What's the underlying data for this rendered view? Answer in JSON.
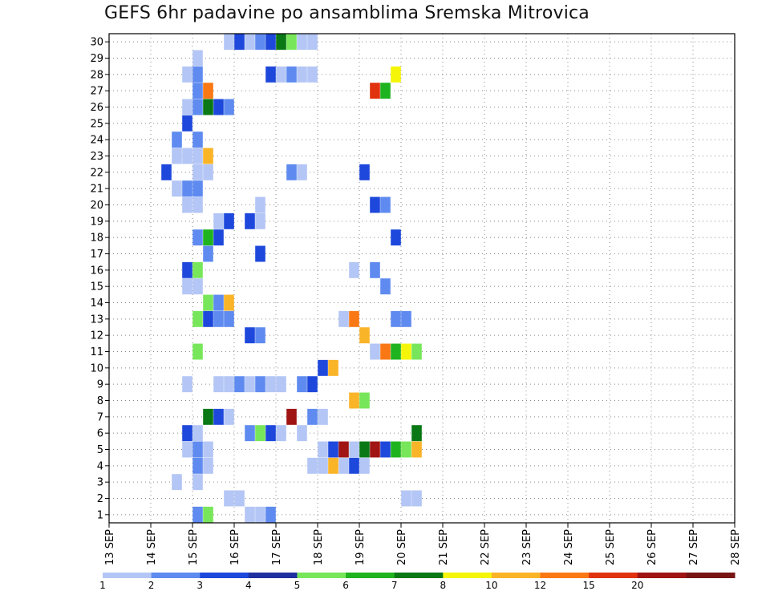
{
  "chart_data": {
    "type": "heatmap",
    "title": "GEFS 6hr padavine po ansamblima Sremska Mitrovica",
    "xlabel": "",
    "ylabel": "",
    "x_ticks": [
      "13 SEP",
      "14 SEP",
      "15 SEP",
      "16 SEP",
      "17 SEP",
      "18 SEP",
      "19 SEP",
      "20 SEP",
      "21 SEP",
      "22 SEP",
      "23 SEP",
      "24 SEP",
      "25 SEP",
      "26 SEP",
      "27 SEP",
      "28 SEP"
    ],
    "y_ticks": [
      "1",
      "2",
      "3",
      "4",
      "5",
      "6",
      "7",
      "8",
      "9",
      "10",
      "11",
      "12",
      "13",
      "14",
      "15",
      "16",
      "17",
      "18",
      "19",
      "20",
      "21",
      "22",
      "23",
      "24",
      "25",
      "26",
      "27",
      "28",
      "29",
      "30"
    ],
    "xlim": [
      0,
      60
    ],
    "ylim": [
      0.5,
      30.5
    ],
    "x_step_label": "6hr steps from 13 SEP 00Z",
    "grid": true,
    "colorbar": {
      "labels": [
        "1",
        "2",
        "3",
        "4",
        "5",
        "6",
        "7",
        "8",
        "10",
        "12",
        "15",
        "20"
      ],
      "colors": [
        "#b4c6f5",
        "#5f8bf0",
        "#1e48dc",
        "#1f2fa0",
        "#78e65a",
        "#1fb41f",
        "#0a7814",
        "#f5f50a",
        "#fab428",
        "#fa7814",
        "#e0320f",
        "#a01414",
        "#781414"
      ]
    },
    "cells": [
      [
        30,
        12,
        1
      ],
      [
        30,
        13,
        3
      ],
      [
        30,
        14,
        1
      ],
      [
        30,
        15,
        2
      ],
      [
        30,
        16,
        3
      ],
      [
        30,
        17,
        7
      ],
      [
        30,
        18,
        5
      ],
      [
        30,
        19,
        1
      ],
      [
        30,
        20,
        1
      ],
      [
        29,
        9,
        1
      ],
      [
        28,
        8,
        1
      ],
      [
        28,
        9,
        2
      ],
      [
        28,
        16,
        3
      ],
      [
        28,
        17,
        1
      ],
      [
        28,
        18,
        2
      ],
      [
        28,
        19,
        1
      ],
      [
        28,
        20,
        1
      ],
      [
        28,
        28,
        8
      ],
      [
        27,
        9,
        2
      ],
      [
        27,
        10,
        10
      ],
      [
        27,
        26,
        11
      ],
      [
        27,
        27,
        6
      ],
      [
        26,
        8,
        1
      ],
      [
        26,
        9,
        2
      ],
      [
        26,
        10,
        7
      ],
      [
        26,
        11,
        3
      ],
      [
        26,
        12,
        2
      ],
      [
        25,
        8,
        3
      ],
      [
        24,
        7,
        2
      ],
      [
        24,
        9,
        2
      ],
      [
        23,
        7,
        1
      ],
      [
        23,
        8,
        1
      ],
      [
        23,
        9,
        1
      ],
      [
        23,
        10,
        9
      ],
      [
        22,
        6,
        3
      ],
      [
        22,
        9,
        1
      ],
      [
        22,
        10,
        1
      ],
      [
        22,
        18,
        2
      ],
      [
        22,
        19,
        1
      ],
      [
        22,
        25,
        3
      ],
      [
        21,
        7,
        1
      ],
      [
        21,
        8,
        2
      ],
      [
        21,
        9,
        2
      ],
      [
        20,
        8,
        1
      ],
      [
        20,
        9,
        1
      ],
      [
        20,
        15,
        1
      ],
      [
        20,
        26,
        3
      ],
      [
        20,
        27,
        2
      ],
      [
        19,
        11,
        1
      ],
      [
        19,
        12,
        3
      ],
      [
        19,
        14,
        3
      ],
      [
        19,
        15,
        1
      ],
      [
        18,
        9,
        2
      ],
      [
        18,
        10,
        6
      ],
      [
        18,
        11,
        3
      ],
      [
        18,
        28,
        3
      ],
      [
        17,
        10,
        2
      ],
      [
        17,
        15,
        3
      ],
      [
        16,
        8,
        3
      ],
      [
        16,
        9,
        5
      ],
      [
        16,
        24,
        1
      ],
      [
        16,
        26,
        2
      ],
      [
        15,
        8,
        1
      ],
      [
        15,
        9,
        1
      ],
      [
        15,
        27,
        2
      ],
      [
        14,
        10,
        5
      ],
      [
        14,
        11,
        2
      ],
      [
        14,
        12,
        9
      ],
      [
        13,
        9,
        5
      ],
      [
        13,
        10,
        3
      ],
      [
        13,
        11,
        2
      ],
      [
        13,
        12,
        2
      ],
      [
        13,
        23,
        1
      ],
      [
        13,
        24,
        10
      ],
      [
        13,
        28,
        2
      ],
      [
        13,
        29,
        2
      ],
      [
        12,
        14,
        3
      ],
      [
        12,
        15,
        2
      ],
      [
        12,
        25,
        9
      ],
      [
        11,
        9,
        5
      ],
      [
        11,
        26,
        1
      ],
      [
        11,
        27,
        10
      ],
      [
        11,
        28,
        6
      ],
      [
        11,
        29,
        8
      ],
      [
        11,
        30,
        5
      ],
      [
        10,
        21,
        3
      ],
      [
        10,
        22,
        9
      ],
      [
        9,
        8,
        1
      ],
      [
        9,
        11,
        1
      ],
      [
        9,
        12,
        1
      ],
      [
        9,
        13,
        2
      ],
      [
        9,
        14,
        1
      ],
      [
        9,
        15,
        2
      ],
      [
        9,
        16,
        1
      ],
      [
        9,
        17,
        1
      ],
      [
        9,
        19,
        2
      ],
      [
        9,
        20,
        3
      ],
      [
        8,
        24,
        9
      ],
      [
        8,
        25,
        5
      ],
      [
        7,
        10,
        7
      ],
      [
        7,
        11,
        3
      ],
      [
        7,
        12,
        1
      ],
      [
        7,
        18,
        12
      ],
      [
        7,
        20,
        2
      ],
      [
        7,
        21,
        1
      ],
      [
        6,
        8,
        3
      ],
      [
        6,
        9,
        1
      ],
      [
        6,
        14,
        2
      ],
      [
        6,
        15,
        5
      ],
      [
        6,
        16,
        3
      ],
      [
        6,
        17,
        1
      ],
      [
        6,
        19,
        1
      ],
      [
        6,
        30,
        7
      ],
      [
        5,
        8,
        1
      ],
      [
        5,
        9,
        2
      ],
      [
        5,
        10,
        1
      ],
      [
        5,
        21,
        1
      ],
      [
        5,
        22,
        3
      ],
      [
        5,
        23,
        12
      ],
      [
        5,
        24,
        1
      ],
      [
        5,
        25,
        7
      ],
      [
        5,
        26,
        12
      ],
      [
        5,
        27,
        3
      ],
      [
        5,
        28,
        6
      ],
      [
        5,
        29,
        5
      ],
      [
        5,
        30,
        9
      ],
      [
        4,
        9,
        2
      ],
      [
        4,
        10,
        1
      ],
      [
        4,
        20,
        1
      ],
      [
        4,
        21,
        1
      ],
      [
        4,
        22,
        9
      ],
      [
        4,
        23,
        1
      ],
      [
        4,
        24,
        3
      ],
      [
        4,
        25,
        1
      ],
      [
        3,
        7,
        1
      ],
      [
        3,
        9,
        1
      ],
      [
        2,
        12,
        1
      ],
      [
        2,
        13,
        1
      ],
      [
        2,
        29,
        1
      ],
      [
        2,
        30,
        1
      ],
      [
        1,
        9,
        2
      ],
      [
        1,
        10,
        5
      ],
      [
        1,
        14,
        1
      ],
      [
        1,
        15,
        1
      ],
      [
        1,
        16,
        2
      ]
    ]
  }
}
